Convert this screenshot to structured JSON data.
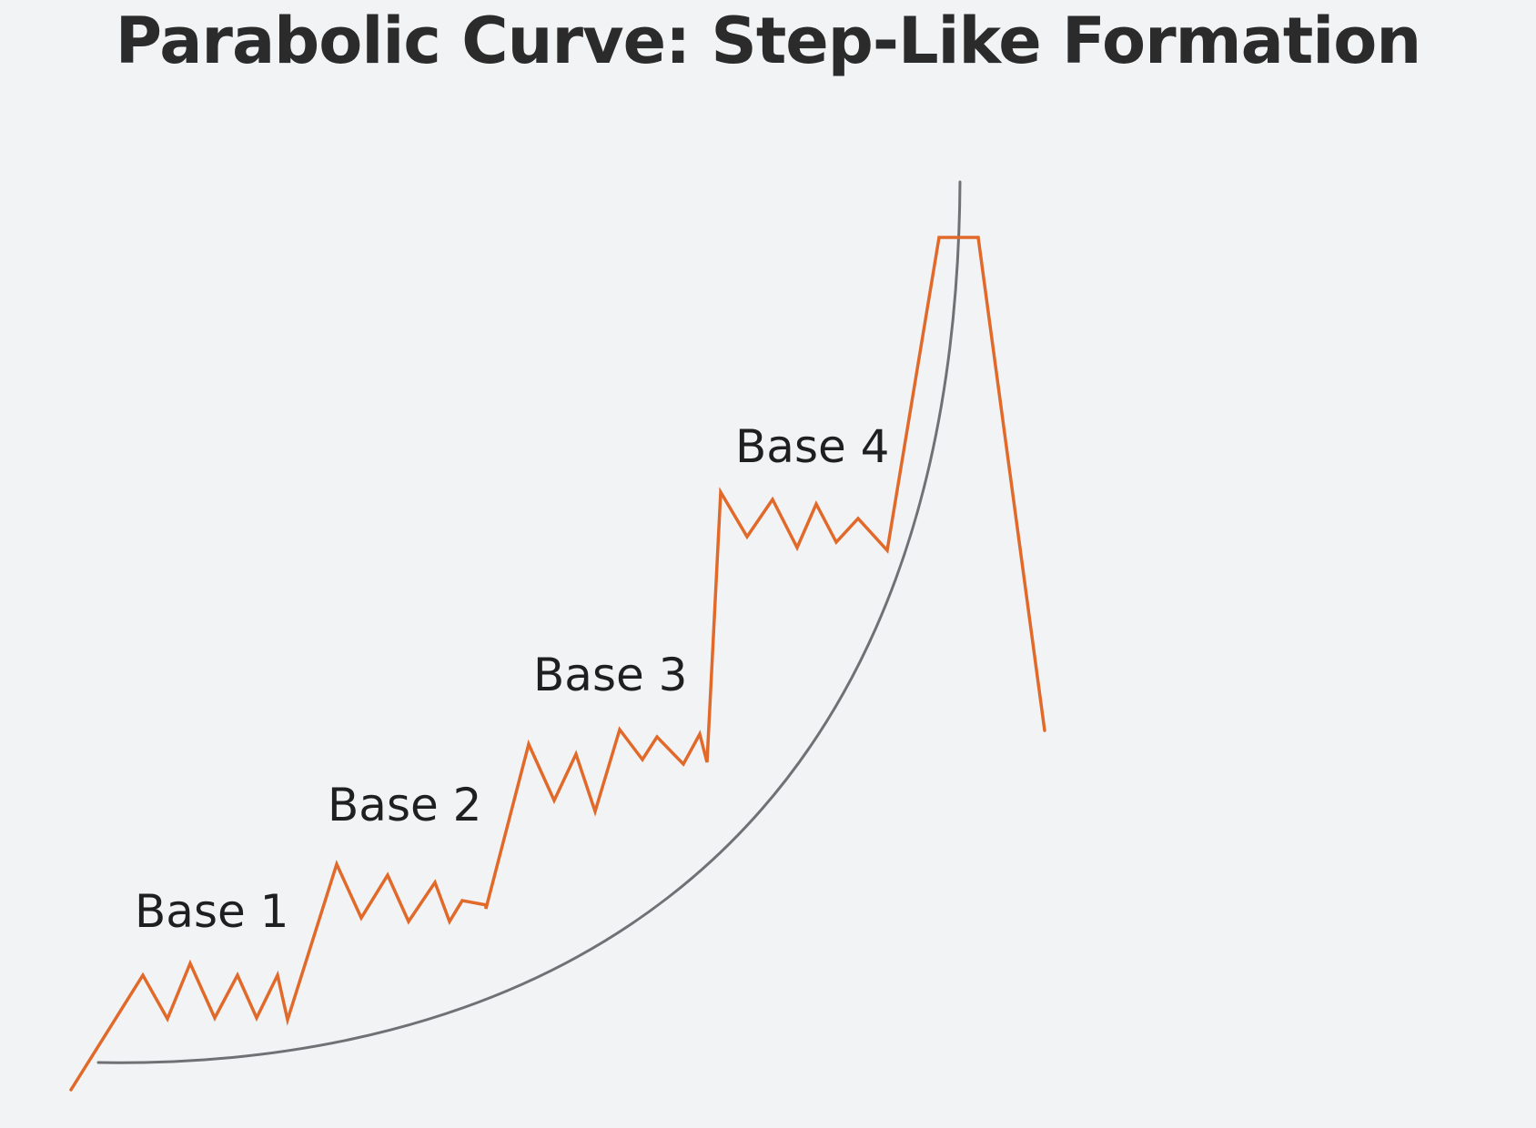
{
  "title": "Parabolic Curve: Step-Like Formation",
  "colors": {
    "price_line": "#e1692a",
    "parabola": "#6f7174",
    "background": "#f2f3f4",
    "text": "#2b2b2b"
  },
  "bases": [
    {
      "label": "Base 1"
    },
    {
      "label": "Base 2"
    },
    {
      "label": "Base 3"
    },
    {
      "label": "Base 4"
    }
  ]
}
